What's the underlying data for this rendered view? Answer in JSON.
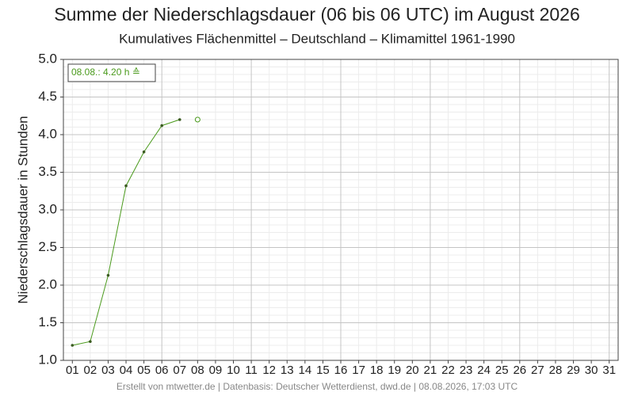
{
  "chart_data": {
    "type": "line",
    "title": "Summe der Niederschlagsdauer (06 bis 06 UTC) im August 2026",
    "subtitle": "Kumulatives Flächenmittel – Deutschland – Klimamittel 1961-1990",
    "y_label": "Niederschlagsdauer in Stunden",
    "footer": "Erstellt von mtwetter.de | Datenbasis: Deutscher Wetterdienst, dwd.de | 08.08.2026, 17:03 UTC",
    "annotation": "08.08.: 4.20 h ≙",
    "categories": [
      "01",
      "02",
      "03",
      "04",
      "05",
      "06",
      "07",
      "08",
      "09",
      "10",
      "11",
      "12",
      "13",
      "14",
      "15",
      "16",
      "17",
      "18",
      "19",
      "20",
      "21",
      "22",
      "23",
      "24",
      "25",
      "26",
      "27",
      "28",
      "29",
      "30",
      "31"
    ],
    "series": [
      {
        "color": "#4a9a1c",
        "marker": "dot",
        "values": [
          1.2,
          1.25,
          2.13,
          3.32,
          3.77,
          4.12,
          4.2,
          null,
          null,
          null,
          null,
          null,
          null,
          null,
          null,
          null,
          null,
          null,
          null,
          null,
          null,
          null,
          null,
          null,
          null,
          null,
          null,
          null,
          null,
          null,
          null
        ]
      },
      {
        "color": "#4a9a1c",
        "marker": "open-circle",
        "values": [
          null,
          null,
          null,
          null,
          null,
          null,
          null,
          4.2,
          null,
          null,
          null,
          null,
          null,
          null,
          null,
          null,
          null,
          null,
          null,
          null,
          null,
          null,
          null,
          null,
          null,
          null,
          null,
          null,
          null,
          null,
          null
        ]
      }
    ],
    "ylim": [
      1.0,
      5.0
    ],
    "yticks": [
      {
        "value": 1,
        "label": "1.0"
      },
      1.5,
      {
        "value": 2,
        "label": "2.0"
      },
      2.5,
      {
        "value": 3,
        "label": "3.0"
      },
      3.5,
      {
        "value": 4,
        "label": "4.0"
      },
      4.5,
      {
        "value": 5,
        "label": "5.0"
      }
    ],
    "grid": true,
    "xgrid_major_step": 5
  }
}
